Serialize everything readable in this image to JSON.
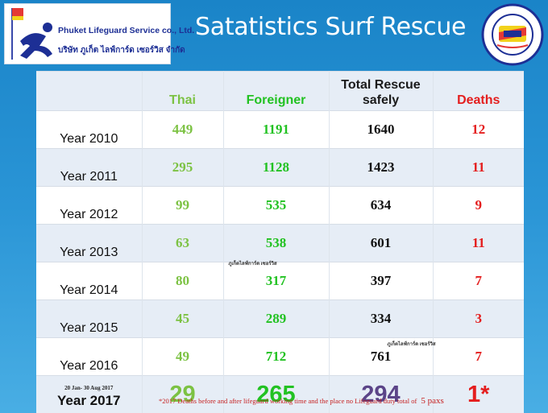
{
  "logo": {
    "company_name": "Phuket Lifeguard Service co., Ltd.",
    "company_name_thai": "บริษัท ภูเก็ต ไลฟ์การ์ด เซอร์วิส จำกัด"
  },
  "title": "Satatistics Surf Rescue",
  "badge": {
    "arc_text": "SURF LIFE SAVING THAILAND",
    "thai_text": "ภูเก็ตไลฟ์การ์ด",
    "bottom_text": "ILS ASSOCIATION"
  },
  "table": {
    "headers": {
      "year": "",
      "thai": "Thai",
      "foreigner": "Foreigner",
      "total_line1": "Total Rescue",
      "total_line2": "safely",
      "deaths": "Deaths"
    },
    "rows": [
      {
        "year": "Year 2010",
        "thai": "449",
        "foreigner": "1191",
        "total": "1640",
        "deaths": "12"
      },
      {
        "year": "Year 2011",
        "thai": "295",
        "foreigner": "1128",
        "total": "1423",
        "deaths": "11"
      },
      {
        "year": "Year 2012",
        "thai": "99",
        "foreigner": "535",
        "total": "634",
        "deaths": "9"
      },
      {
        "year": "Year 2013",
        "thai": "63",
        "foreigner": "538",
        "total": "601",
        "deaths": "11"
      },
      {
        "year": "Year 2014",
        "thai": "80",
        "foreigner": "317",
        "total": "397",
        "deaths": "7"
      },
      {
        "year": "Year 2015",
        "thai": "45",
        "foreigner": "289",
        "total": "334",
        "deaths": "3"
      },
      {
        "year": "Year 2016",
        "thai": "49",
        "foreigner": "712",
        "total": "761",
        "deaths": "7"
      }
    ],
    "last_row": {
      "date_range": "20 Jan- 30 Aug 2017",
      "year": "Year 2017",
      "thai": "29",
      "foreigner": "265",
      "total": "294",
      "deaths": "1*"
    },
    "watermark_note": "ภูเก็ตไลฟ์การ์ด เซอร์วิส"
  },
  "footnote": {
    "text": "*2017 Deaths before and after lifeguard working time and the place no Lifeguard duty total of",
    "count": "5 paxs"
  },
  "colors": {
    "background": "#1f8ccf",
    "thai": "#7cc243",
    "foreigner": "#22c222",
    "deaths": "#e41e1e",
    "total_2017": "#5b4488"
  }
}
